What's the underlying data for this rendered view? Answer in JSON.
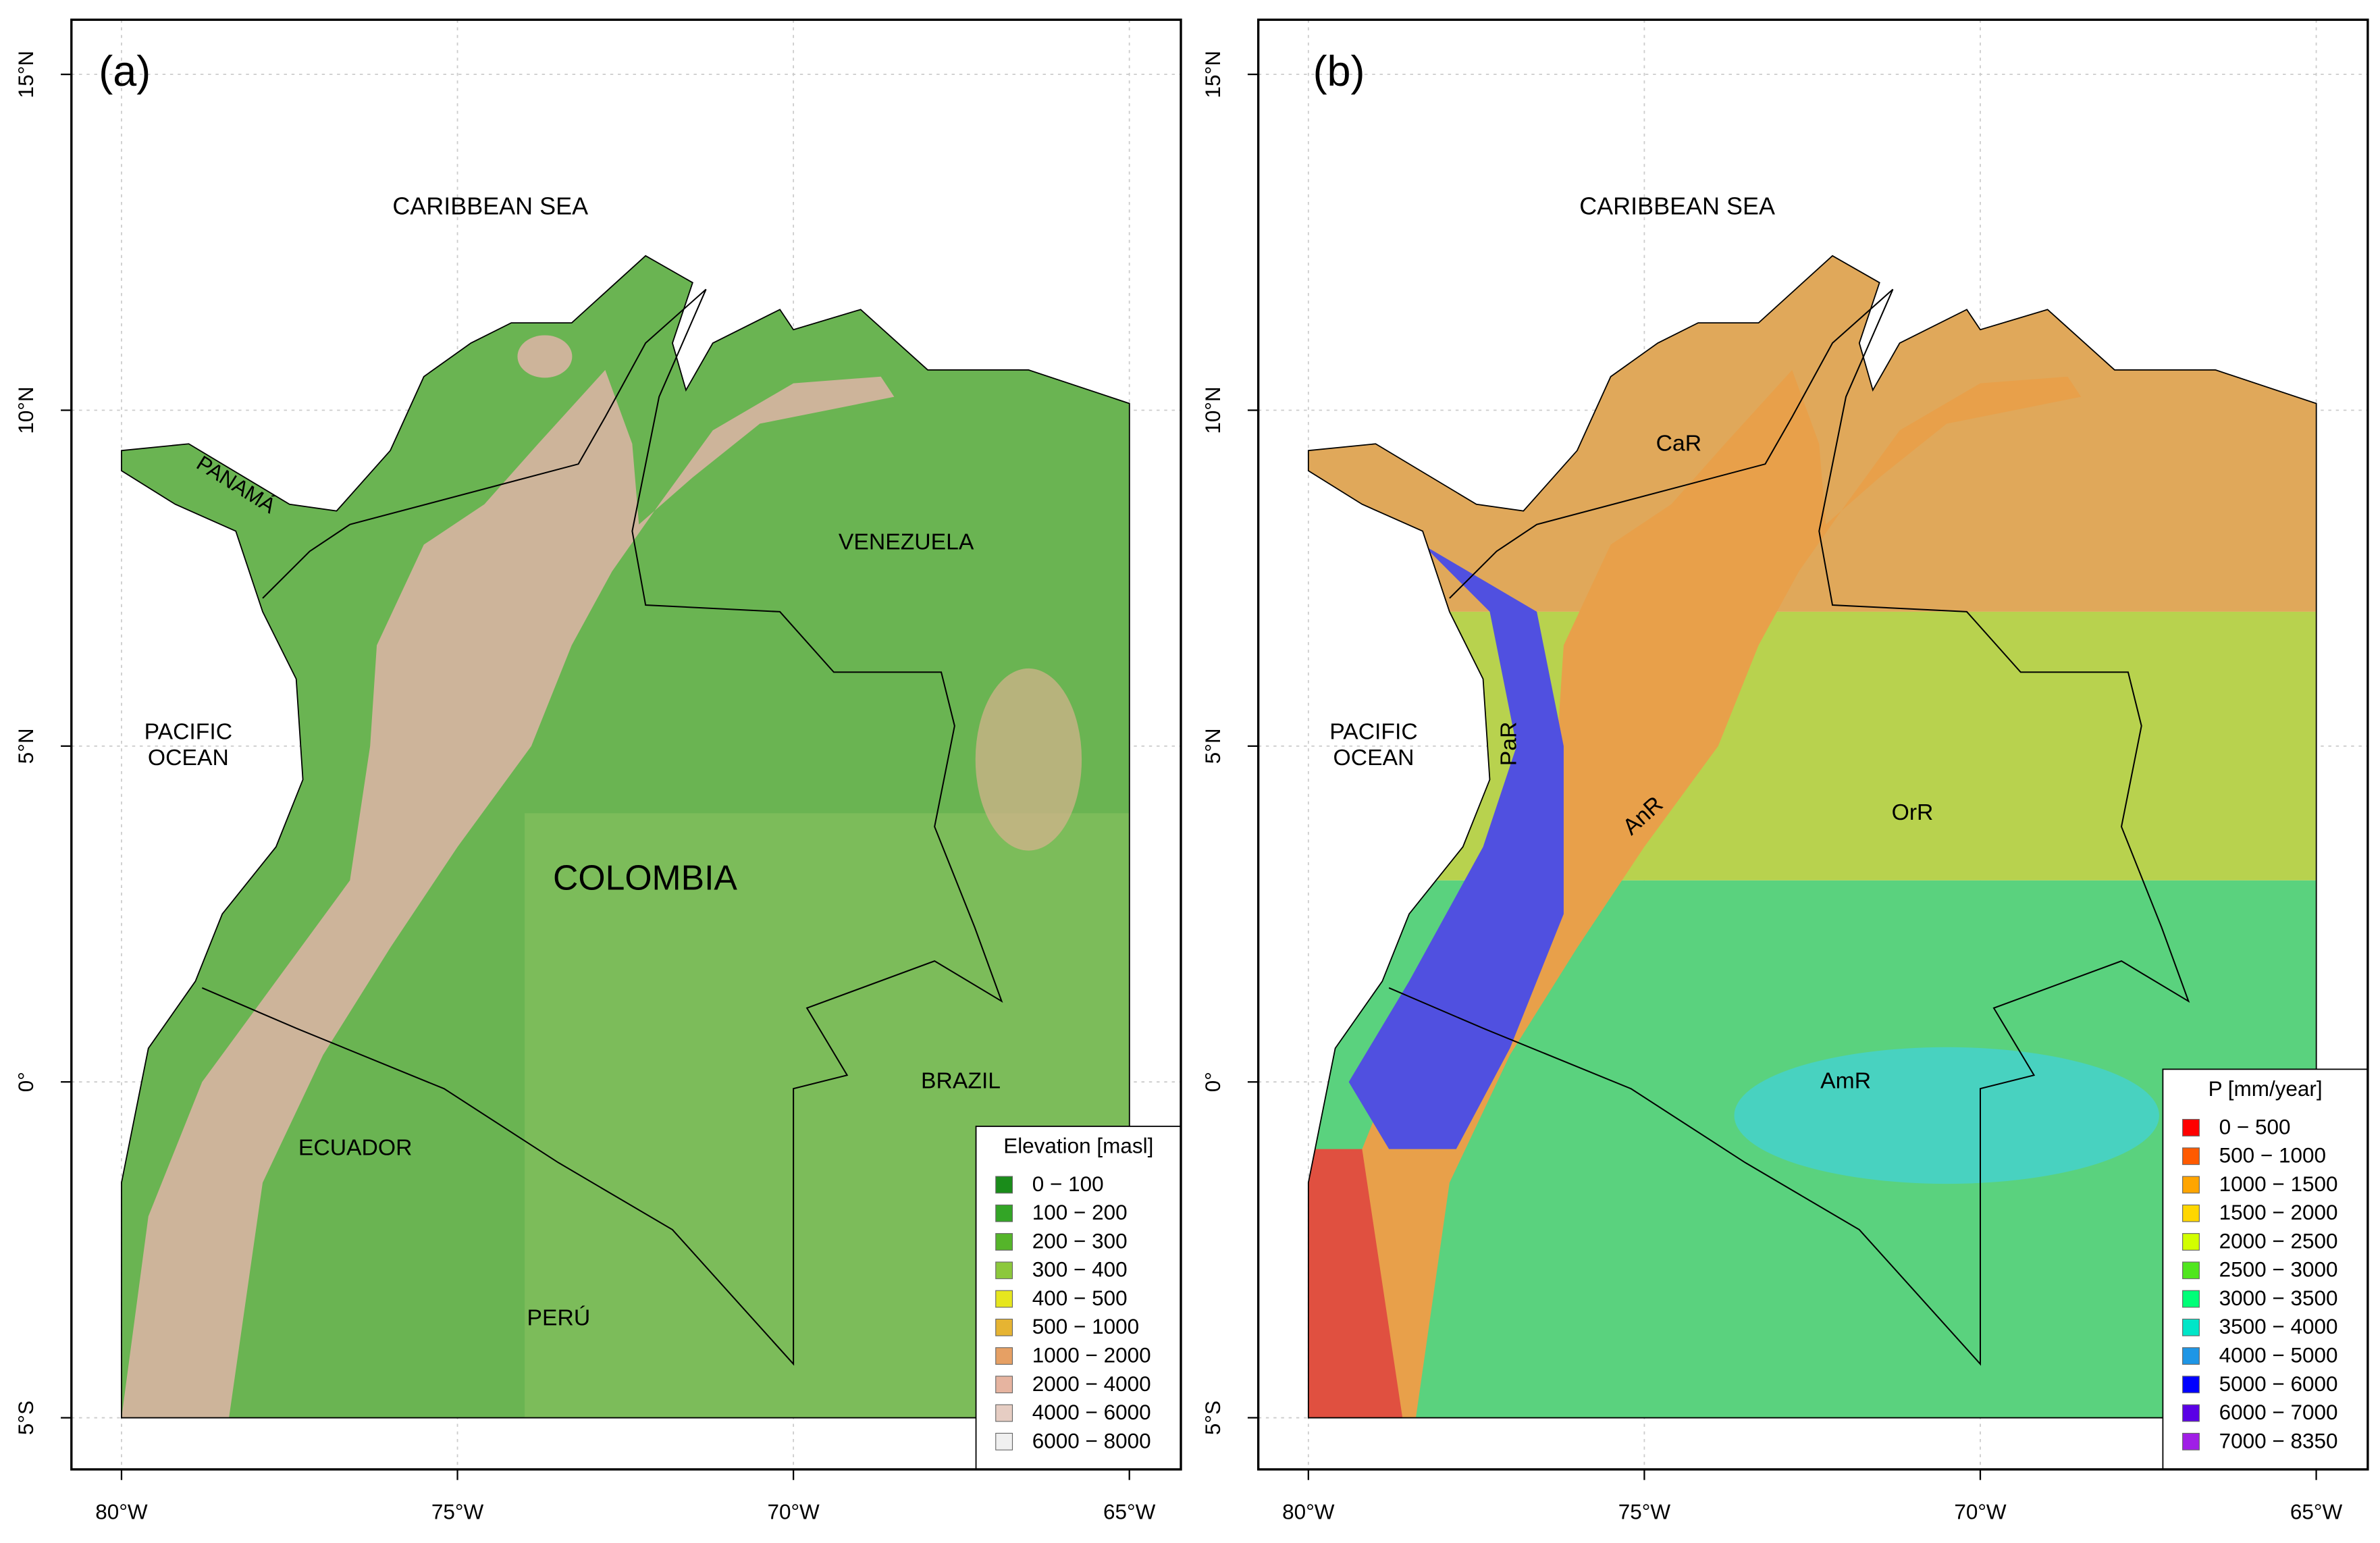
{
  "panels": [
    {
      "label": "(a)",
      "x_ticks": [
        {
          "value": -80,
          "label": "80°W"
        },
        {
          "value": -75,
          "label": "75°W"
        },
        {
          "value": -70,
          "label": "70°W"
        },
        {
          "value": -65,
          "label": "65°W"
        }
      ],
      "y_ticks": [
        {
          "value": 15,
          "label": "15°N"
        },
        {
          "value": 10,
          "label": "10°N"
        },
        {
          "value": 5,
          "label": "5°N"
        },
        {
          "value": 0,
          "label": "0°"
        },
        {
          "value": -5,
          "label": "5°S"
        }
      ],
      "places": [
        "CARIBBEAN SEA",
        "PACIFIC",
        "OCEAN",
        "PANAMÁ",
        "VENEZUELA",
        "COLOMBIA",
        "ECUADOR",
        "BRAZIL",
        "PERÚ"
      ],
      "legend": {
        "title": "Elevation [masl]",
        "items": [
          {
            "label": "0 − 100",
            "color": "#1a8c1a"
          },
          {
            "label": "100 − 200",
            "color": "#33a526"
          },
          {
            "label": "200 − 300",
            "color": "#55b52a"
          },
          {
            "label": "300 − 400",
            "color": "#8cc83c"
          },
          {
            "label": "400 − 500",
            "color": "#e6e61e"
          },
          {
            "label": "500 − 1000",
            "color": "#e6b432"
          },
          {
            "label": "1000 − 2000",
            "color": "#e6a064"
          },
          {
            "label": "2000 − 4000",
            "color": "#e6b4a0"
          },
          {
            "label": "4000 − 6000",
            "color": "#e6cdc3"
          },
          {
            "label": "6000 − 8000",
            "color": "#f0f0f0"
          }
        ]
      }
    },
    {
      "label": "(b)",
      "x_ticks": [
        {
          "value": -80,
          "label": "80°W"
        },
        {
          "value": -75,
          "label": "75°W"
        },
        {
          "value": -70,
          "label": "70°W"
        },
        {
          "value": -65,
          "label": "65°W"
        }
      ],
      "y_ticks": [
        {
          "value": 15,
          "label": "15°N"
        },
        {
          "value": 10,
          "label": "10°N"
        },
        {
          "value": 5,
          "label": "5°N"
        },
        {
          "value": 0,
          "label": "0°"
        },
        {
          "value": -5,
          "label": "5°S"
        }
      ],
      "places": [
        "CARIBBEAN SEA",
        "PACIFIC",
        "OCEAN",
        "CaR",
        "PaR",
        "AnR",
        "OrR",
        "AmR"
      ],
      "legend": {
        "title": "P [mm/year]",
        "items": [
          {
            "label": "0 − 500",
            "color": "#ff0000"
          },
          {
            "label": "500 − 1000",
            "color": "#ff5a00"
          },
          {
            "label": "1000 − 1500",
            "color": "#ffa500"
          },
          {
            "label": "1500 − 2000",
            "color": "#ffd700"
          },
          {
            "label": "2000 − 2500",
            "color": "#d2ff00"
          },
          {
            "label": "2500 − 3000",
            "color": "#50e61e"
          },
          {
            "label": "3000 − 3500",
            "color": "#00ff78"
          },
          {
            "label": "3500 − 4000",
            "color": "#00e6c8"
          },
          {
            "label": "4000 − 5000",
            "color": "#1e96e6"
          },
          {
            "label": "5000 − 6000",
            "color": "#0000ff"
          },
          {
            "label": "6000 − 7000",
            "color": "#5a00e6"
          },
          {
            "label": "7000 − 8350",
            "color": "#a01ee6"
          }
        ]
      }
    }
  ]
}
